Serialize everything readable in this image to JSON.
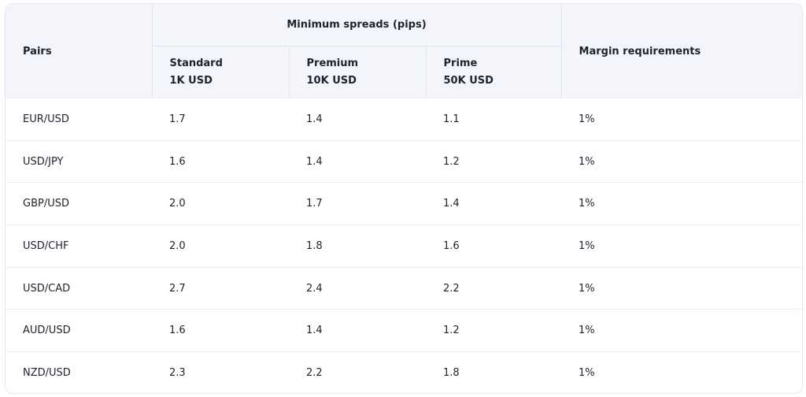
{
  "table": {
    "headers": {
      "pairs": "Pairs",
      "group": "Minimum spreads (pips)",
      "standard": {
        "name": "Standard",
        "deposit": "1K USD"
      },
      "premium": {
        "name": "Premium",
        "deposit": "10K USD"
      },
      "prime": {
        "name": "Prime",
        "deposit": "50K USD"
      },
      "margin": "Margin requirements"
    },
    "rows": [
      {
        "pair": "EUR/USD",
        "standard": "1.7",
        "premium": "1.4",
        "prime": "1.1",
        "margin": "1%"
      },
      {
        "pair": "USD/JPY",
        "standard": "1.6",
        "premium": "1.4",
        "prime": "1.2",
        "margin": "1%"
      },
      {
        "pair": "GBP/USD",
        "standard": "2.0",
        "premium": "1.7",
        "prime": "1.4",
        "margin": "1%"
      },
      {
        "pair": "USD/CHF",
        "standard": "2.0",
        "premium": "1.8",
        "prime": "1.6",
        "margin": "1%"
      },
      {
        "pair": "USD/CAD",
        "standard": "2.7",
        "premium": "2.4",
        "prime": "2.2",
        "margin": "1%"
      },
      {
        "pair": "AUD/USD",
        "standard": "1.6",
        "premium": "1.4",
        "prime": "1.2",
        "margin": "1%"
      },
      {
        "pair": "NZD/USD",
        "standard": "2.3",
        "premium": "2.2",
        "prime": "1.8",
        "margin": "1%"
      }
    ]
  },
  "colors": {
    "header_bg": "#f4f5fa",
    "border": "#e6e8f0",
    "text": "#1f2230"
  }
}
